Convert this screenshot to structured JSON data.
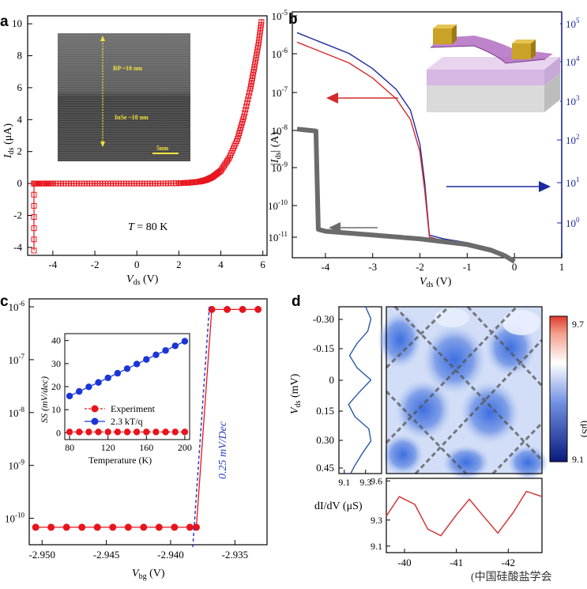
{
  "panels": {
    "a": {
      "label": "a"
    },
    "b": {
      "label": "b"
    },
    "c": {
      "label": "c"
    },
    "d": {
      "label": "d"
    }
  },
  "watermark": "(中国硅酸盐学会",
  "chart_data": [
    {
      "panel": "a",
      "type": "line",
      "xlabel_main": "V",
      "xlabel_sub": "ds",
      "xlabel_unit": " (V)",
      "ylabel_main": "I",
      "ylabel_sub": "ds",
      "ylabel_unit": " (μA)",
      "xlim": [
        -5.2,
        6.2
      ],
      "ylim": [
        -4.5,
        10.5
      ],
      "xticks": [
        -4,
        -2,
        0,
        2,
        4,
        6
      ],
      "yticks": [
        -4,
        -2,
        0,
        2,
        4,
        6,
        8,
        10
      ],
      "annotation_main": "T",
      "annotation_rest": " = 80 K",
      "series": [
        {
          "color": "#e8141d",
          "marker": "square",
          "x": [
            -4.9,
            -4.9,
            -4.9,
            -4.5,
            -4,
            -3,
            -2,
            -1,
            0,
            1,
            2,
            2.5,
            3,
            3.3,
            3.6,
            4,
            4.4,
            4.8,
            5.1,
            5.4,
            5.6,
            5.8,
            5.95
          ],
          "y": [
            -4.2,
            0,
            0,
            0,
            0,
            0,
            0,
            0,
            0,
            0,
            0.02,
            0.05,
            0.12,
            0.22,
            0.4,
            0.8,
            1.6,
            2.8,
            4.2,
            5.9,
            7.3,
            8.8,
            10.3
          ]
        }
      ],
      "inset": {
        "type": "image",
        "labels": [
          "BP ~10 nm",
          "InSe ~10 nm"
        ],
        "scalebar": "5nm"
      }
    },
    {
      "panel": "b",
      "type": "line",
      "xlabel_main": "V",
      "xlabel_sub": "ds",
      "xlabel_unit": " (V)",
      "ylabel_main": "|I",
      "ylabel_sub": "ds",
      "ylabel_unit": "| (A)",
      "xlim": [
        -4.7,
        1
      ],
      "xticks": [
        -4,
        -3,
        -2,
        -1,
        0,
        1
      ],
      "ylim_log_exp": [
        -11.5,
        -5
      ],
      "yticks_left": [
        "10-5",
        "10-6",
        "10-7",
        "10-8",
        "10-9",
        "10-10",
        "10-11"
      ],
      "yticks_right": [
        "105",
        "104",
        "103",
        "102",
        "101",
        "100"
      ],
      "right_axis_color": "#1d2a9e",
      "series": [
        {
          "color": "#1d2a9e",
          "axis": "right",
          "x": [
            -4.6,
            -4.3,
            -4.0,
            -3.5,
            -3.0,
            -2.5,
            -2.2,
            -2.0,
            -1.9,
            -1.8,
            -1.5,
            -1.0,
            -0.5,
            -0.2,
            0
          ],
          "y_log": [
            -5.55,
            -5.7,
            -5.85,
            -6.1,
            -6.5,
            -7.05,
            -7.6,
            -8.5,
            -9.5,
            -10.9,
            -11.0,
            -11.1,
            -11.25,
            -11.4,
            -11.55
          ]
        },
        {
          "color": "#d42a2a",
          "axis": "left",
          "x": [
            -4.6,
            -4.3,
            -4.0,
            -3.5,
            -3.0,
            -2.5,
            -2.2,
            -2.0,
            -1.9,
            -1.8,
            -1.5,
            -1.0,
            -0.5,
            -0.2,
            0
          ],
          "y_log": [
            -5.8,
            -5.95,
            -6.1,
            -6.35,
            -6.75,
            -7.3,
            -7.85,
            -8.7,
            -9.7,
            -10.95,
            -11.05,
            -11.15,
            -11.3,
            -11.45,
            -11.6
          ]
        },
        {
          "color": "#6b6b6b",
          "axis": "left",
          "x": [
            -4.6,
            -4.2,
            -4.15,
            -4.0,
            -3.0,
            -2.0,
            -1.0,
            -0.5,
            -0.2,
            0
          ],
          "y_log": [
            -8.1,
            -8.15,
            -10.75,
            -10.8,
            -10.9,
            -11.0,
            -11.15,
            -11.3,
            -11.45,
            -11.6
          ]
        }
      ]
    },
    {
      "panel": "c",
      "type": "scatter",
      "xlabel_main": "V",
      "xlabel_sub": "bg",
      "xlabel_unit": " (V)",
      "xlim": [
        -2.951,
        -2.9325
      ],
      "xticks": [
        -2.95,
        -2.945,
        -2.94,
        -2.935
      ],
      "xtick_labels": [
        "-2.950",
        "-2.945",
        "-2.940",
        "-2.935"
      ],
      "ylim_log_exp": [
        -10.5,
        -5.85
      ],
      "yticks": [
        "10-6",
        "10-7",
        "10-8",
        "10-9",
        "10-10"
      ],
      "annotation": "0.25 mV/Dec",
      "series": [
        {
          "color": "#e8141d",
          "x": [
            -2.9505,
            -2.9493,
            -2.9481,
            -2.9469,
            -2.9457,
            -2.9445,
            -2.9433,
            -2.9421,
            -2.9409,
            -2.9397,
            -2.9385,
            -2.938,
            -2.9368,
            -2.9356,
            -2.9344,
            -2.9332
          ],
          "y_log": [
            -10.17,
            -10.17,
            -10.17,
            -10.17,
            -10.17,
            -10.17,
            -10.17,
            -10.17,
            -10.17,
            -10.17,
            -10.17,
            -10.17,
            -6.05,
            -6.05,
            -6.05,
            -6.05
          ]
        }
      ],
      "inset": {
        "type": "scatter",
        "xlabel": "Temperature (K)",
        "ylabel": "SS (mV/dec)",
        "xlim": [
          75,
          205
        ],
        "ylim": [
          -3,
          43
        ],
        "xticks": [
          80,
          120,
          160,
          200
        ],
        "yticks": [
          0,
          10,
          20,
          30,
          40
        ],
        "series": [
          {
            "name": "Experiment",
            "color": "#e8141d",
            "x": [
              80,
              90,
              100,
              110,
              120,
              130,
              140,
              150,
              160,
              170,
              180,
              190,
              200
            ],
            "y": [
              0.3,
              0.3,
              0.3,
              0.3,
              0.3,
              0.3,
              0.3,
              0.3,
              0.3,
              0.3,
              0.3,
              0.3,
              0.3
            ]
          },
          {
            "name": "2.3 kT/q",
            "color": "#1a36d6",
            "x": [
              80,
              90,
              100,
              110,
              120,
              130,
              140,
              150,
              160,
              170,
              180,
              190,
              200
            ],
            "y": [
              15.9,
              17.9,
              19.9,
              21.8,
              23.8,
              25.8,
              27.8,
              29.8,
              31.8,
              33.8,
              35.7,
              37.7,
              39.7
            ]
          }
        ]
      }
    },
    {
      "panel": "d",
      "type": "heatmap",
      "ylabel_main": "V",
      "ylabel_sub": "ds",
      "ylabel_unit": " (mV)",
      "yticks": [
        "-0.30",
        "-0.15",
        "0",
        "0.15",
        "0.30",
        "0.45"
      ],
      "left_profile": {
        "xticks": [
          "9.1",
          "9.3"
        ],
        "color": "#2a5aa8",
        "xlim": [
          9.05,
          9.45
        ],
        "ylim": [
          -0.36,
          0.46
        ],
        "y": [
          -0.36,
          -0.3,
          -0.24,
          -0.18,
          -0.12,
          -0.06,
          0,
          0.06,
          0.12,
          0.18,
          0.24,
          0.3,
          0.36,
          0.42,
          0.46
        ],
        "x": [
          9.3,
          9.35,
          9.32,
          9.22,
          9.15,
          9.22,
          9.35,
          9.24,
          9.14,
          9.2,
          9.33,
          9.35,
          9.27,
          9.2,
          9.16
        ]
      },
      "bottom_profile": {
        "ylabel": "dI/dV (μS)",
        "yticks": [
          "9.1",
          "9.3",
          "9.6"
        ],
        "xticks": [
          "-40",
          "-41",
          "-42"
        ],
        "color": "#d42a2a",
        "xlim": [
          -39.65,
          -42.65
        ],
        "ylim": [
          9.05,
          9.62
        ],
        "x": [
          -39.65,
          -39.9,
          -40.2,
          -40.45,
          -40.7,
          -41.0,
          -41.25,
          -41.5,
          -41.8,
          -42.1,
          -42.35,
          -42.65
        ],
        "y": [
          9.33,
          9.48,
          9.42,
          9.23,
          9.18,
          9.34,
          9.46,
          9.34,
          9.2,
          9.36,
          9.52,
          9.48
        ]
      },
      "colorbar": {
        "max": "9.7",
        "min": "9.1",
        "label": "(μS)"
      }
    }
  ]
}
